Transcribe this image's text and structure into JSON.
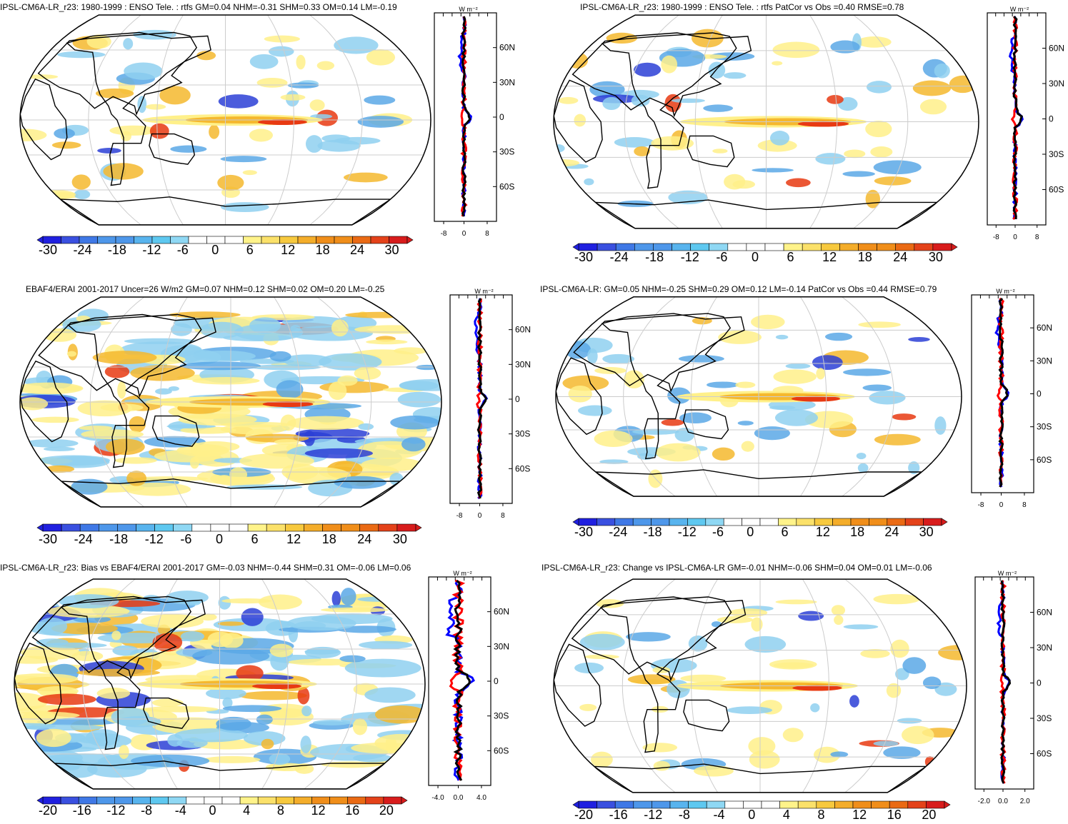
{
  "colors": {
    "ocean": "#ffffff",
    "positive_light": "#fff08a",
    "positive_mid": "#f5b82e",
    "positive_strong": "#e83a12",
    "negative_light": "#8fd0f0",
    "negative_mid": "#5aa8e6",
    "negative_strong": "#2b3fd6",
    "grid": "#cccccc",
    "line_obs": "#ff0000",
    "line_model": "#0000ff",
    "line_diff": "#000000"
  },
  "profile_unit": "W m⁻²",
  "lat_ticks": [
    "60N",
    "30N",
    "0",
    "30S",
    "60S"
  ],
  "panels": [
    {
      "id": "p1",
      "title": "IPSL-CM6A-LR_r23: 1980-1999 : ENSO Tele. : rtfs GM=0.04 NHM=-0.31 SHM=0.33 OM=0.14 LM=-0.19",
      "cbar_ticks": [
        "-30",
        "-24",
        "-18",
        "-12",
        "-6",
        "0",
        "6",
        "12",
        "18",
        "24",
        "30"
      ],
      "profile_ticks": [
        "-8",
        "0",
        "8"
      ]
    },
    {
      "id": "p2",
      "title": "IPSL-CM6A-LR_r23: 1980-1999 : ENSO Tele. : rtfs PatCor vs Obs =0.40 RMSE=0.78",
      "cbar_ticks": [
        "-30",
        "-24",
        "-18",
        "-12",
        "-6",
        "0",
        "6",
        "12",
        "18",
        "24",
        "30"
      ],
      "profile_ticks": [
        "-8",
        "0",
        "8"
      ]
    },
    {
      "id": "p3",
      "title": "EBAF4/ERAI 2001-2017 Uncer=26 W/m2 GM=0.07 NHM=0.12 SHM=0.02 OM=0.20 LM=-0.25",
      "cbar_ticks": [
        "-30",
        "-24",
        "-18",
        "-12",
        "-6",
        "0",
        "6",
        "12",
        "18",
        "24",
        "30"
      ],
      "profile_ticks": [
        "-8",
        "0",
        "8"
      ]
    },
    {
      "id": "p4",
      "title": "IPSL-CM6A-LR: GM=0.05 NHM=-0.25 SHM=0.29 OM=0.12 LM=-0.14 PatCor vs Obs =0.44 RMSE=0.79",
      "cbar_ticks": [
        "-30",
        "-24",
        "-18",
        "-12",
        "-6",
        "0",
        "6",
        "12",
        "18",
        "24",
        "30"
      ],
      "profile_ticks": [
        "-8",
        "0",
        "8"
      ]
    },
    {
      "id": "p5",
      "title": "IPSL-CM6A-LR_r23: Bias vs EBAF4/ERAI 2001-2017 GM=-0.03 NHM=-0.44 SHM=0.31 OM=-0.06 LM=0.06",
      "cbar_ticks": [
        "-20",
        "-16",
        "-12",
        "-8",
        "-4",
        "0",
        "4",
        "8",
        "12",
        "16",
        "20"
      ],
      "profile_ticks": [
        "-4.0",
        "0.0",
        "4.0"
      ]
    },
    {
      "id": "p6",
      "title": "IPSL-CM6A-LR_r23: Change vs IPSL-CM6A-LR GM=-0.01 NHM=-0.06 SHM=0.04 OM=0.01 LM=-0.06",
      "cbar_ticks": [
        "-20",
        "-16",
        "-12",
        "-8",
        "-4",
        "0",
        "4",
        "8",
        "12",
        "16",
        "20"
      ],
      "profile_ticks": [
        "-2.0",
        "0.0",
        "2.0"
      ]
    }
  ]
}
